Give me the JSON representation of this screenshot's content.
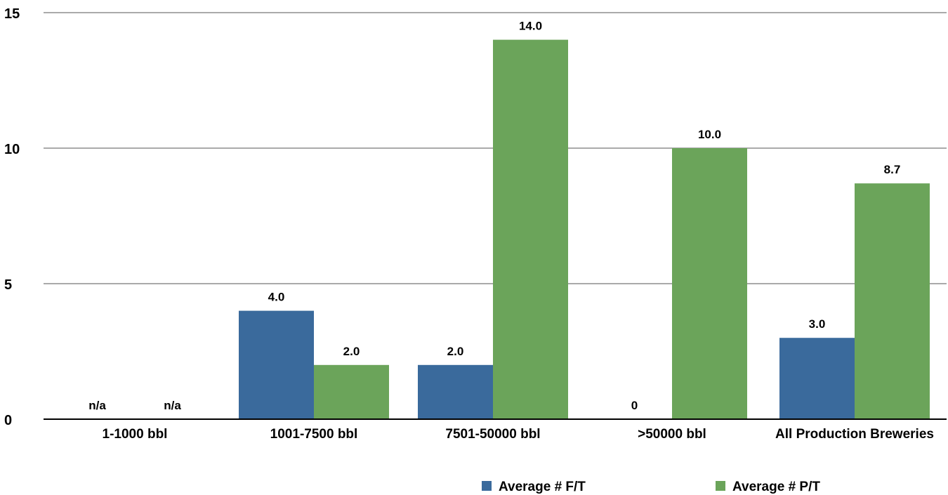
{
  "chart_data": {
    "type": "bar",
    "categories": [
      "1-1000 bbl",
      "1001-7500 bbl",
      "7501-50000 bbl",
      ">50000 bbl",
      "All Production Breweries"
    ],
    "series": [
      {
        "name": "Average # F/T",
        "color": "#3A6A9C",
        "values": [
          null,
          4.0,
          2.0,
          0,
          3.0
        ],
        "labels": [
          "n/a",
          "4.0",
          "2.0",
          "0",
          "3.0"
        ]
      },
      {
        "name": "Average # P/T",
        "color": "#6BA45A",
        "values": [
          null,
          2.0,
          14.0,
          10.0,
          8.7
        ],
        "labels": [
          "n/a",
          "2.0",
          "14.0",
          "10.0",
          "8.7"
        ]
      }
    ],
    "ylim": [
      0,
      15
    ],
    "yticks": [
      "0",
      "5",
      "10",
      "15"
    ],
    "grid": true,
    "legend_position": "bottom-right",
    "gridline_color": "#AAAAAA",
    "axis_color": "#000000"
  }
}
